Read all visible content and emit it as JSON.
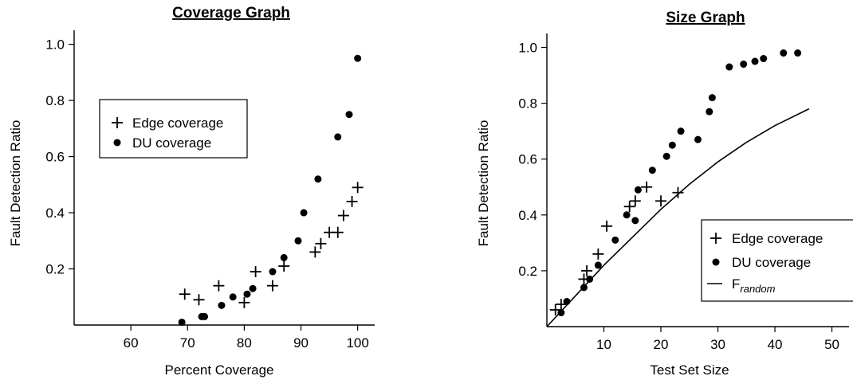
{
  "chart_data": [
    {
      "type": "scatter",
      "title": "Coverage Graph",
      "xlabel": "Percent Coverage",
      "ylabel": "Fault Detection Ratio",
      "xlim": [
        50,
        103
      ],
      "ylim": [
        0,
        1.05
      ],
      "xticks": [
        "60",
        "70",
        "80",
        "90",
        "100"
      ],
      "yticks": [
        "0.2",
        "0.4",
        "0.6",
        "0.8",
        "1.0"
      ],
      "legend_position": "upper-left",
      "grid": false,
      "series": [
        {
          "name": "Edge coverage",
          "marker": "plus",
          "points": [
            [
              69.5,
              0.11
            ],
            [
              72,
              0.09
            ],
            [
              75.5,
              0.14
            ],
            [
              80,
              0.08
            ],
            [
              82,
              0.19
            ],
            [
              85,
              0.14
            ],
            [
              87,
              0.21
            ],
            [
              92.5,
              0.26
            ],
            [
              93.5,
              0.29
            ],
            [
              95,
              0.33
            ],
            [
              96.5,
              0.33
            ],
            [
              97.5,
              0.39
            ],
            [
              99,
              0.44
            ],
            [
              100,
              0.49
            ]
          ]
        },
        {
          "name": "DU coverage",
          "marker": "dot",
          "points": [
            [
              69,
              0.01
            ],
            [
              72.5,
              0.03
            ],
            [
              73,
              0.03
            ],
            [
              76,
              0.07
            ],
            [
              78,
              0.1
            ],
            [
              80.5,
              0.11
            ],
            [
              81.5,
              0.13
            ],
            [
              85,
              0.19
            ],
            [
              87,
              0.24
            ],
            [
              89.5,
              0.3
            ],
            [
              90.5,
              0.4
            ],
            [
              93,
              0.52
            ],
            [
              96.5,
              0.67
            ],
            [
              98.5,
              0.75
            ],
            [
              100,
              0.95
            ]
          ]
        }
      ]
    },
    {
      "type": "scatter",
      "title": "Size Graph",
      "xlabel": "Test Set Size",
      "ylabel": "Fault Detection Ratio",
      "xlim": [
        0,
        53
      ],
      "ylim": [
        0,
        1.05
      ],
      "xticks": [
        "10",
        "20",
        "30",
        "40",
        "50"
      ],
      "yticks": [
        "0.2",
        "0.4",
        "0.6",
        "0.8",
        "1.0"
      ],
      "legend_position": "lower-right",
      "grid": false,
      "series": [
        {
          "name": "Edge coverage",
          "marker": "plus",
          "points": [
            [
              1.5,
              0.06
            ],
            [
              2.5,
              0.08
            ],
            [
              6.5,
              0.17
            ],
            [
              7,
              0.2
            ],
            [
              9,
              0.26
            ],
            [
              10.5,
              0.36
            ],
            [
              14.5,
              0.43
            ],
            [
              15.5,
              0.45
            ],
            [
              17.5,
              0.5
            ],
            [
              20,
              0.45
            ],
            [
              23,
              0.48
            ]
          ]
        },
        {
          "name": "DU coverage",
          "marker": "dot",
          "points": [
            [
              2.5,
              0.05
            ],
            [
              3.5,
              0.09
            ],
            [
              6.5,
              0.14
            ],
            [
              7.5,
              0.17
            ],
            [
              9,
              0.22
            ],
            [
              12,
              0.31
            ],
            [
              14,
              0.4
            ],
            [
              15.5,
              0.38
            ],
            [
              16,
              0.49
            ],
            [
              18.5,
              0.56
            ],
            [
              21,
              0.61
            ],
            [
              22,
              0.65
            ],
            [
              23.5,
              0.7
            ],
            [
              26.5,
              0.67
            ],
            [
              28.5,
              0.77
            ],
            [
              29,
              0.82
            ],
            [
              32,
              0.93
            ],
            [
              34.5,
              0.94
            ],
            [
              36.5,
              0.95
            ],
            [
              38,
              0.96
            ],
            [
              41.5,
              0.98
            ],
            [
              44,
              0.98
            ]
          ]
        },
        {
          "name": "F",
          "name_subscript": "random",
          "marker": "line",
          "points": [
            [
              0,
              0
            ],
            [
              5,
              0.11
            ],
            [
              10,
              0.22
            ],
            [
              15,
              0.32
            ],
            [
              20,
              0.42
            ],
            [
              25,
              0.51
            ],
            [
              30,
              0.59
            ],
            [
              35,
              0.66
            ],
            [
              40,
              0.72
            ],
            [
              46,
              0.78
            ]
          ]
        }
      ]
    }
  ]
}
